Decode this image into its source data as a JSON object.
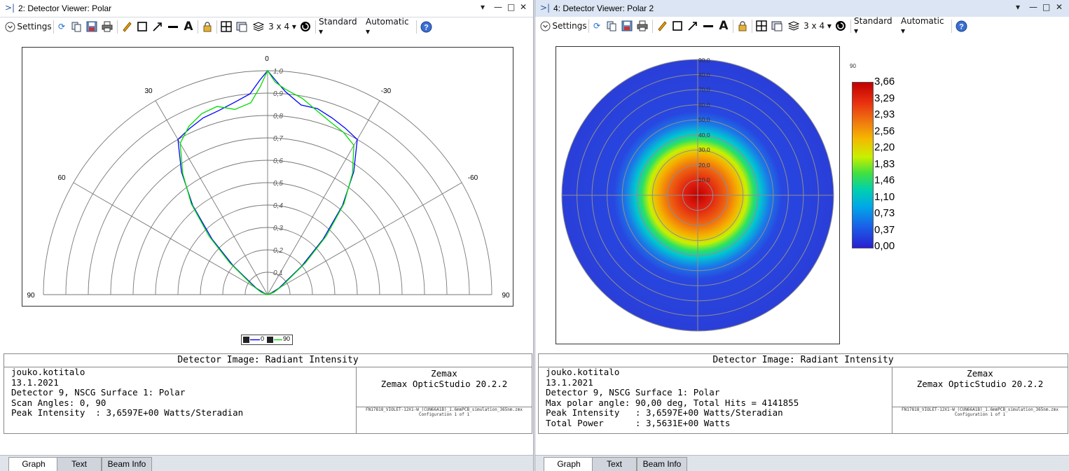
{
  "left": {
    "title": "2: Detector Viewer: Polar",
    "toolbar": {
      "settings_label": "Settings",
      "layout_label": "3 x 4 ▾",
      "standard_label": "Standard ▾",
      "automatic_label": "Automatic ▾"
    },
    "plot": {
      "angle_labels": {
        "a0": "0",
        "a30": "30",
        "am30": "-30",
        "a60": "60",
        "am60": "-60",
        "a90l": "90",
        "a90r": "90"
      },
      "radial_labels": [
        "0,1",
        "0,2",
        "0,3",
        "0,4",
        "0,5",
        "0,6",
        "0,7",
        "0,8",
        "0,9",
        "1,0"
      ],
      "legend": {
        "s1": "0",
        "s2": "90"
      }
    },
    "chart_data": {
      "type": "line",
      "coordinate_system": "polar",
      "theta_range_deg": [
        90,
        -90
      ],
      "r_range": [
        0,
        1.0
      ],
      "series": [
        {
          "name": "0",
          "color": "#0000ff",
          "theta_deg": [
            90,
            70,
            60,
            50,
            45,
            40,
            35,
            30,
            25,
            20,
            15,
            10,
            5,
            2,
            0,
            -2,
            -5,
            -10,
            -15,
            -20,
            -25,
            -30,
            -35,
            -40,
            -45,
            -50,
            -60,
            -70,
            -90
          ],
          "r": [
            0.0,
            0.02,
            0.06,
            0.2,
            0.35,
            0.52,
            0.67,
            0.8,
            0.82,
            0.84,
            0.85,
            0.87,
            0.9,
            0.96,
            1.0,
            0.96,
            0.91,
            0.86,
            0.86,
            0.84,
            0.82,
            0.8,
            0.67,
            0.52,
            0.35,
            0.2,
            0.06,
            0.02,
            0.0
          ]
        },
        {
          "name": "90",
          "color": "#00dd00",
          "theta_deg": [
            90,
            70,
            60,
            50,
            45,
            40,
            35,
            30,
            25,
            20,
            15,
            10,
            5,
            2,
            0,
            -2,
            -5,
            -10,
            -15,
            -20,
            -25,
            -30,
            -35,
            -40,
            -45,
            -50,
            -60,
            -70,
            -90
          ],
          "r": [
            0.0,
            0.03,
            0.07,
            0.22,
            0.37,
            0.53,
            0.66,
            0.78,
            0.83,
            0.86,
            0.87,
            0.84,
            0.86,
            0.93,
            1.0,
            0.95,
            0.92,
            0.89,
            0.85,
            0.82,
            0.8,
            0.77,
            0.66,
            0.53,
            0.37,
            0.22,
            0.07,
            0.03,
            0.0
          ]
        }
      ]
    },
    "info": {
      "title": "Detector Image: Radiant Intensity",
      "user": "jouko.kotitalo",
      "date": "13.1.2021",
      "line3": "Detector 9, NSCG Surface 1: Polar",
      "line4": "Scan Angles: 0, 90",
      "line5": "Peak Intensity  : 3,6597E+00 Watts/Steradian",
      "vendor": "Zemax",
      "product": "Zemax OpticStudio 20.2.2",
      "file": "FN17818_VIOLET-12X1-W_(CUN66A1B)_1.6mmPCB_simulation_365nm.zmx",
      "config": "Configuration 1 of 1"
    },
    "tabs": [
      "Graph",
      "Text",
      "Beam Info"
    ]
  },
  "right": {
    "title": "4: Detector Viewer: Polar 2",
    "toolbar": {
      "settings_label": "Settings",
      "layout_label": "3 x 4 ▾",
      "standard_label": "Standard ▾",
      "automatic_label": "Automatic ▾"
    },
    "plot": {
      "radial_labels": [
        "10,0",
        "20,0",
        "30,0",
        "40,0",
        "50,0",
        "60,0",
        "70,0",
        "80,0",
        "90,0"
      ],
      "colorbar_header": "90",
      "colorbar_ticks": [
        "3,66",
        "3,29",
        "2,93",
        "2,56",
        "2,20",
        "1,83",
        "1,46",
        "1,10",
        "0,73",
        "0,37",
        "0,00"
      ]
    },
    "chart_data": {
      "type": "heatmap",
      "coordinate_system": "polar",
      "r_range_deg": [
        0,
        90
      ],
      "value_range": [
        0.0,
        3.66
      ],
      "colorbar_ticks": [
        3.66,
        3.29,
        2.93,
        2.56,
        2.2,
        1.83,
        1.46,
        1.1,
        0.73,
        0.37,
        0.0
      ],
      "radial_profile": {
        "polar_angle_deg": [
          0,
          10,
          20,
          30,
          35,
          40,
          50,
          90
        ],
        "value": [
          3.6,
          3.1,
          2.7,
          1.9,
          1.2,
          0.4,
          0.1,
          0.0
        ]
      }
    },
    "info": {
      "title": "Detector Image: Radiant Intensity",
      "user": "jouko.kotitalo",
      "date": "13.1.2021",
      "line3": "Detector 9, NSCG Surface 1: Polar",
      "line4": "Max polar angle: 90,00 deg, Total Hits = 4141855",
      "line5": "Peak Intensity   : 3,6597E+00 Watts/Steradian",
      "line6": "Total Power      : 3,5631E+00 Watts",
      "vendor": "Zemax",
      "product": "Zemax OpticStudio 20.2.2",
      "file": "FN17818_VIOLET-12X1-W_(CUN66A1B)_1.6mmPCB_simulation_365nm.zmx",
      "config": "Configuration 1 of 1"
    },
    "tabs": [
      "Graph",
      "Text",
      "Beam Info"
    ]
  }
}
